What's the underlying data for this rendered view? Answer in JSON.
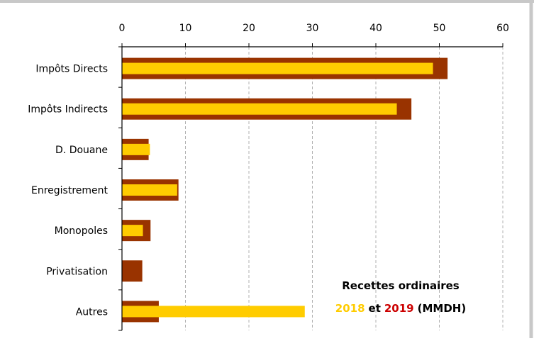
{
  "chart_data": {
    "type": "bar",
    "orientation": "horizontal",
    "categories": [
      "Impôts Directs",
      "Impôts Indirects",
      "D. Douane",
      "Enregistrement",
      "Monopoles",
      "Privatisation",
      "Autres"
    ],
    "series": [
      {
        "name": "2019",
        "color": "#993300",
        "values": [
          51.3,
          45.6,
          4.2,
          8.9,
          4.5,
          3.2,
          5.8
        ]
      },
      {
        "name": "2018",
        "color": "#FFCC00",
        "values": [
          49.0,
          43.3,
          4.4,
          8.7,
          3.3,
          0,
          28.8
        ]
      }
    ],
    "xlim": [
      0,
      60
    ],
    "xticks": [
      "0",
      "10",
      "20",
      "30",
      "40",
      "50",
      "60"
    ],
    "xaxis_position": "top",
    "grid": "vertical dashed",
    "annotation": {
      "line1": "Recettes ordinaires",
      "year_2018": "2018",
      "connector": "et",
      "year_2019": "2019",
      "unit": "(MMDH)"
    }
  }
}
